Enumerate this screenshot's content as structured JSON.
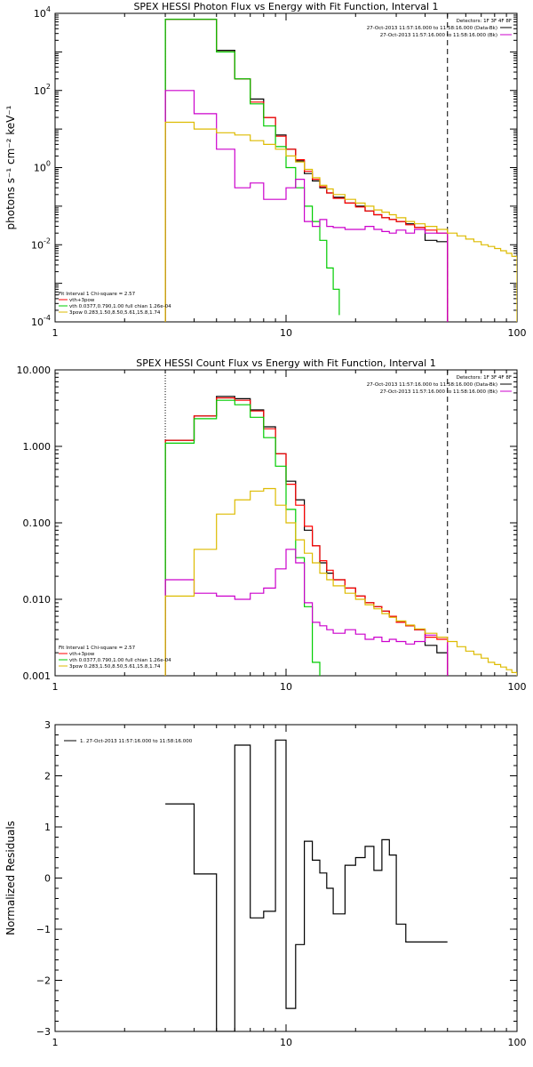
{
  "chart_data": [
    {
      "type": "line",
      "title": "SPEX HESSI Photon Flux vs Energy with Fit Function, Interval 1",
      "xlabel": "",
      "ylabel": "photons s⁻¹ cm⁻² keV⁻¹",
      "xscale": "log",
      "yscale": "log",
      "xlim": [
        1,
        100
      ],
      "ylim": [
        0.0001,
        10000
      ],
      "xticks": [
        {
          "v": 1,
          "label": "1"
        },
        {
          "v": 10,
          "label": "10"
        },
        {
          "v": 100,
          "label": "100"
        }
      ],
      "yticks": [
        {
          "v": 0.0001,
          "base": "10",
          "exp": "-4"
        },
        {
          "v": 0.01,
          "base": "10",
          "exp": "-2"
        },
        {
          "v": 1,
          "base": "10",
          "exp": "0"
        },
        {
          "v": 100,
          "base": "10",
          "exp": "2"
        },
        {
          "v": 10000,
          "base": "10",
          "exp": "4"
        }
      ],
      "legend_top": [
        "Detectors: 1F 3F 4F 8F",
        "27-Oct-2013 11:57:16.000 to 11:58:16.000 (Data-Bk)",
        "27-Oct-2013 11:57:16.000 to 11:58:16.000 (Bk)"
      ],
      "legend_bottom": [
        "Fit Interval 1   Chi-square = 2.57",
        "vth+3pow",
        "vth 0.0377,0.790,1.00  full chian 1.26e-04",
        "3pow 0.283,1.50,8.50,5.61,15.8,1.74"
      ],
      "fit_range": [
        3,
        50
      ],
      "series": [
        {
          "name": "Data-Bk",
          "color": "#000000",
          "step": true,
          "edges": [
            3,
            4,
            5,
            6,
            7,
            8,
            9,
            10,
            11,
            12,
            13,
            14,
            15,
            16,
            18,
            20,
            22,
            24,
            26,
            28,
            30,
            33,
            36,
            40,
            45,
            50
          ],
          "values": [
            7000,
            7000,
            1100,
            200,
            60,
            20,
            7,
            3,
            1.5,
            0.7,
            0.45,
            0.3,
            0.22,
            0.17,
            0.12,
            0.1,
            0.075,
            0.06,
            0.05,
            0.045,
            0.04,
            0.035,
            0.028,
            0.013,
            0.012
          ]
        },
        {
          "name": "vth+3pow",
          "color": "#ff0000",
          "step": true,
          "edges": [
            3,
            4,
            5,
            6,
            7,
            8,
            9,
            10,
            11,
            12,
            13,
            14,
            15,
            16,
            18,
            20,
            22,
            24,
            26,
            28,
            30,
            33,
            36,
            40,
            45,
            50
          ],
          "values": [
            7000,
            7000,
            1000,
            200,
            50,
            20,
            6.5,
            3,
            1.6,
            0.8,
            0.5,
            0.32,
            0.22,
            0.16,
            0.12,
            0.095,
            0.075,
            0.06,
            0.05,
            0.045,
            0.04,
            0.033,
            0.028,
            0.024,
            0.02
          ]
        },
        {
          "name": "vth",
          "color": "#00cc00",
          "step": true,
          "edges": [
            3,
            4,
            5,
            6,
            7,
            8,
            9,
            10,
            11,
            12,
            13,
            14,
            15,
            16,
            17
          ],
          "values": [
            7000,
            7000,
            1000,
            200,
            45,
            12,
            3.5,
            1,
            0.3,
            0.1,
            0.04,
            0.013,
            0.0025,
            0.0007,
            0.00015
          ]
        },
        {
          "name": "Bk",
          "color": "#cc00cc",
          "step": true,
          "edges": [
            3,
            4,
            5,
            6,
            7,
            8,
            9,
            10,
            11,
            12,
            13,
            14,
            15,
            16,
            18,
            20,
            22,
            24,
            26,
            28,
            30,
            33,
            36,
            40,
            45,
            50
          ],
          "values": [
            100,
            25,
            3,
            0.3,
            0.4,
            0.15,
            0.15,
            0.3,
            0.5,
            0.04,
            0.03,
            0.045,
            0.03,
            0.028,
            0.025,
            0.025,
            0.03,
            0.025,
            0.022,
            0.02,
            0.024,
            0.02,
            0.025,
            0.02,
            0.02
          ]
        },
        {
          "name": "3pow",
          "color": "#ddbb00",
          "step": true,
          "edges": [
            3,
            4,
            5,
            6,
            7,
            8,
            9,
            10,
            11,
            12,
            13,
            14,
            15,
            16,
            18,
            20,
            22,
            24,
            26,
            28,
            30,
            33,
            36,
            40,
            45,
            50,
            55,
            60,
            65,
            70,
            75,
            80,
            85,
            90,
            95,
            100
          ],
          "values": [
            15,
            10,
            8,
            7,
            5,
            4,
            3,
            2,
            1.4,
            0.9,
            0.55,
            0.35,
            0.28,
            0.2,
            0.15,
            0.12,
            0.1,
            0.08,
            0.07,
            0.06,
            0.05,
            0.04,
            0.035,
            0.03,
            0.025,
            0.02,
            0.017,
            0.014,
            0.012,
            0.01,
            0.009,
            0.008,
            0.007,
            0.006,
            0.005
          ]
        }
      ]
    },
    {
      "type": "line",
      "title": "SPEX HESSI Count Flux vs Energy with Fit Function, Interval 1",
      "xlabel": "",
      "ylabel": "",
      "xscale": "log",
      "yscale": "log",
      "xlim": [
        1,
        100
      ],
      "ylim": [
        0.001,
        10
      ],
      "xticks": [
        {
          "v": 1,
          "label": "1"
        },
        {
          "v": 10,
          "label": "10"
        },
        {
          "v": 100,
          "label": "100"
        }
      ],
      "yticks": [
        {
          "v": 0.001,
          "label": "0.001"
        },
        {
          "v": 0.01,
          "label": "0.010"
        },
        {
          "v": 0.1,
          "label": "0.100"
        },
        {
          "v": 1,
          "label": "1.000"
        },
        {
          "v": 10,
          "label": "10.000"
        }
      ],
      "legend_top": [
        "Detectors: 1F 3F 4F 8F",
        "27-Oct-2013 11:57:16.000 to 11:58:16.000 (Data-Bk)",
        "27-Oct-2013 11:57:16.000 to 11:58:16.000 (Bk)"
      ],
      "legend_bottom": [
        "Fit Interval 1   Chi-square = 2.57",
        "vth+3pow",
        "vth 0.0377,0.790,1.00  full chian 1.26e-04",
        "3pow 0.283,1.50,8.50,5.61,15.8,1.74"
      ],
      "fit_range": [
        3,
        50
      ],
      "series": [
        {
          "name": "Data-Bk",
          "color": "#000000",
          "step": true,
          "edges": [
            3,
            4,
            5,
            6,
            7,
            8,
            9,
            10,
            11,
            12,
            13,
            14,
            15,
            16,
            18,
            20,
            22,
            24,
            26,
            28,
            30,
            33,
            36,
            40,
            45,
            50
          ],
          "values": [
            1.2,
            2.5,
            4.5,
            4.2,
            3,
            1.8,
            0.8,
            0.35,
            0.2,
            0.08,
            0.05,
            0.03,
            0.022,
            0.018,
            0.014,
            0.011,
            0.009,
            0.008,
            0.007,
            0.006,
            0.005,
            0.0045,
            0.004,
            0.0025,
            0.002
          ]
        },
        {
          "name": "vth+3pow",
          "color": "#ff0000",
          "step": true,
          "edges": [
            3,
            4,
            5,
            6,
            7,
            8,
            9,
            10,
            11,
            12,
            13,
            14,
            15,
            16,
            18,
            20,
            22,
            24,
            26,
            28,
            30,
            33,
            36,
            40,
            45,
            50
          ],
          "values": [
            1.2,
            2.5,
            4.3,
            4.0,
            2.9,
            1.7,
            0.8,
            0.32,
            0.17,
            0.09,
            0.05,
            0.032,
            0.024,
            0.018,
            0.014,
            0.011,
            0.009,
            0.008,
            0.007,
            0.006,
            0.005,
            0.0045,
            0.004,
            0.0032,
            0.003
          ]
        },
        {
          "name": "vth",
          "color": "#00cc00",
          "step": true,
          "edges": [
            3,
            4,
            5,
            6,
            7,
            8,
            9,
            10,
            11,
            12,
            13,
            14
          ],
          "values": [
            1.1,
            2.3,
            4.0,
            3.5,
            2.4,
            1.3,
            0.55,
            0.15,
            0.035,
            0.008,
            0.0015
          ]
        },
        {
          "name": "Bk",
          "color": "#cc00cc",
          "step": true,
          "edges": [
            3,
            4,
            5,
            6,
            7,
            8,
            9,
            10,
            11,
            12,
            13,
            14,
            15,
            16,
            18,
            20,
            22,
            24,
            26,
            28,
            30,
            33,
            36,
            40,
            45,
            50
          ],
          "values": [
            0.018,
            0.012,
            0.011,
            0.01,
            0.012,
            0.014,
            0.025,
            0.045,
            0.03,
            0.009,
            0.005,
            0.0045,
            0.004,
            0.0036,
            0.004,
            0.0035,
            0.003,
            0.0032,
            0.0028,
            0.003,
            0.0028,
            0.0026,
            0.0028,
            0.0034,
            0.0032
          ]
        },
        {
          "name": "3pow",
          "color": "#ddbb00",
          "step": true,
          "edges": [
            3,
            4,
            5,
            6,
            7,
            8,
            9,
            10,
            11,
            12,
            13,
            14,
            15,
            16,
            18,
            20,
            22,
            24,
            26,
            28,
            30,
            33,
            36,
            40,
            45,
            50,
            55,
            60,
            65,
            70,
            75,
            80,
            85,
            90,
            95,
            100
          ],
          "values": [
            0.011,
            0.045,
            0.13,
            0.2,
            0.26,
            0.28,
            0.17,
            0.1,
            0.06,
            0.04,
            0.03,
            0.022,
            0.018,
            0.015,
            0.012,
            0.01,
            0.0085,
            0.0075,
            0.0065,
            0.0058,
            0.0052,
            0.0046,
            0.0041,
            0.0036,
            0.0032,
            0.0028,
            0.0024,
            0.0021,
            0.0019,
            0.0017,
            0.0015,
            0.0014,
            0.0013,
            0.0012,
            0.0011
          ]
        }
      ]
    },
    {
      "type": "line",
      "title": "",
      "xlabel": "",
      "ylabel": "Normalized Residuals",
      "xscale": "log",
      "yscale": "linear",
      "xlim": [
        1,
        100
      ],
      "ylim": [
        -3,
        3
      ],
      "xticks": [
        {
          "v": 1,
          "label": "1"
        },
        {
          "v": 10,
          "label": "10"
        },
        {
          "v": 100,
          "label": "100"
        }
      ],
      "yticks": [
        {
          "v": -3,
          "label": "−3"
        },
        {
          "v": -2,
          "label": "−2"
        },
        {
          "v": -1,
          "label": "−1"
        },
        {
          "v": 0,
          "label": "0"
        },
        {
          "v": 1,
          "label": "1"
        },
        {
          "v": 2,
          "label": "2"
        },
        {
          "v": 3,
          "label": "3"
        }
      ],
      "legend_top": [
        "1. 27-Oct-2013 11:57:16.000 to 11:58:16.000"
      ],
      "series": [
        {
          "name": "1. 27-Oct-2013 11:57:16.000 to 11:58:16.000",
          "color": "#000000",
          "step": true,
          "edges": [
            3,
            4,
            5,
            6,
            7,
            8,
            9,
            10,
            11,
            12,
            13,
            14,
            15,
            16,
            18,
            20,
            22,
            24,
            26,
            28,
            30,
            33,
            36,
            40,
            45,
            50
          ],
          "values": [
            1.45,
            0.08,
            -3.0,
            2.6,
            -0.78,
            -0.65,
            2.7,
            -2.55,
            -1.3,
            0.72,
            0.35,
            0.1,
            -0.2,
            -0.7,
            0.25,
            0.4,
            0.62,
            0.15,
            0.75,
            0.45,
            -0.9,
            -1.25,
            -1.25,
            -1.25,
            -1.25
          ]
        }
      ]
    }
  ]
}
